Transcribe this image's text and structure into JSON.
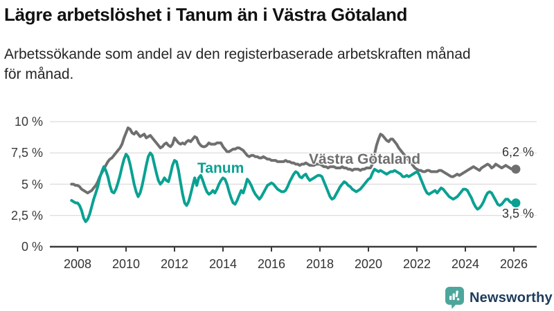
{
  "header": {
    "title": "Lägre arbetslöshet i Tanum än i Västra Götaland",
    "subtitle_line1": "Arbetssökande som andel av den registerbaserade arbetskraften månad",
    "subtitle_line2": "för månad."
  },
  "chart_data": {
    "type": "line",
    "title": "Lägre arbetslöshet i Tanum än i Västra Götaland",
    "xlabel": "",
    "ylabel": "",
    "frequency": "monthly",
    "x_start": "2007-10",
    "x_end": "2026-02",
    "xlim": [
      2007.7,
      2026.95
    ],
    "ylim": [
      0,
      10
    ],
    "grid": "horizontal",
    "legend_position": "inline-labels",
    "y_ticks": {
      "values": [
        0,
        2.5,
        5,
        7.5,
        10
      ],
      "labels": [
        "0 %",
        "2,5 %",
        "5 %",
        "7,5 %",
        "10 %"
      ]
    },
    "x_ticks": {
      "values": [
        2008,
        2010,
        2012,
        2014,
        2016,
        2018,
        2020,
        2022,
        2024,
        2026
      ],
      "labels": [
        "2008",
        "2010",
        "2012",
        "2014",
        "2016",
        "2018",
        "2020",
        "2022",
        "2024",
        "2026"
      ]
    },
    "series": [
      {
        "name": "Västra Götaland",
        "color": "#6f6f6f",
        "end_label": "6,2 %",
        "end_value": 6.2,
        "values": [
          5.0,
          5.0,
          4.9,
          4.9,
          4.8,
          4.6,
          4.5,
          4.4,
          4.3,
          4.4,
          4.5,
          4.7,
          4.9,
          5.2,
          5.6,
          5.9,
          6.2,
          6.5,
          6.8,
          7.0,
          7.1,
          7.3,
          7.5,
          7.7,
          7.9,
          8.2,
          8.7,
          9.1,
          9.5,
          9.4,
          9.1,
          9.0,
          9.2,
          9.0,
          8.8,
          8.9,
          9.0,
          8.7,
          8.8,
          8.9,
          8.7,
          8.5,
          8.3,
          8.1,
          7.9,
          8.0,
          8.2,
          8.3,
          8.1,
          8.0,
          8.2,
          8.7,
          8.5,
          8.3,
          8.2,
          8.3,
          8.2,
          8.4,
          8.5,
          8.4,
          8.6,
          8.8,
          8.7,
          8.3,
          8.1,
          8.0,
          8.0,
          8.1,
          8.3,
          8.2,
          8.2,
          8.2,
          8.3,
          8.3,
          8.3,
          8.0,
          7.8,
          7.6,
          7.6,
          7.7,
          7.8,
          7.8,
          7.9,
          7.9,
          7.8,
          7.7,
          7.5,
          7.3,
          7.2,
          7.3,
          7.3,
          7.2,
          7.2,
          7.1,
          7.1,
          7.2,
          7.1,
          7.0,
          7.0,
          6.9,
          6.9,
          6.9,
          6.8,
          6.8,
          6.8,
          6.8,
          6.9,
          6.8,
          6.8,
          6.7,
          6.7,
          6.6,
          6.6,
          6.5,
          6.6,
          6.6,
          6.7,
          6.6,
          6.5,
          6.5,
          6.5,
          6.6,
          6.6,
          6.6,
          6.5,
          6.4,
          6.4,
          6.3,
          6.4,
          6.4,
          6.4,
          6.3,
          6.3,
          6.3,
          6.4,
          6.3,
          6.3,
          6.2,
          6.2,
          6.1,
          6.2,
          6.2,
          6.2,
          6.1,
          6.2,
          6.2,
          6.3,
          6.3,
          6.3,
          6.6,
          7.4,
          8.1,
          8.6,
          9.0,
          8.9,
          8.7,
          8.5,
          8.4,
          8.6,
          8.6,
          8.4,
          8.2,
          7.9,
          7.7,
          7.5,
          7.3,
          7.1,
          6.9,
          6.7,
          6.5,
          6.3,
          6.2,
          6.1,
          6.1,
          6.0,
          6.0,
          6.1,
          6.1,
          6.0,
          6.0,
          6.0,
          6.0,
          6.1,
          6.1,
          6.0,
          5.9,
          5.8,
          5.7,
          5.6,
          5.6,
          5.7,
          5.8,
          5.7,
          5.8,
          5.9,
          6.0,
          6.1,
          6.2,
          6.3,
          6.4,
          6.3,
          6.2,
          6.1,
          6.3,
          6.4,
          6.5,
          6.6,
          6.5,
          6.3,
          6.4,
          6.6,
          6.5,
          6.4,
          6.3,
          6.4,
          6.5,
          6.4,
          6.3,
          6.2,
          6.2,
          6.2
        ]
      },
      {
        "name": "Tanum",
        "color": "#0aa192",
        "end_label": "3,5 %",
        "end_value": 3.5,
        "values": [
          3.7,
          3.6,
          3.5,
          3.5,
          3.3,
          2.9,
          2.3,
          2.0,
          2.2,
          2.6,
          3.2,
          3.8,
          4.3,
          4.8,
          5.5,
          6.0,
          6.4,
          6.1,
          5.6,
          4.9,
          4.4,
          4.3,
          4.6,
          5.1,
          5.7,
          6.4,
          7.0,
          7.4,
          7.2,
          6.6,
          5.8,
          5.0,
          4.4,
          4.0,
          4.3,
          4.9,
          5.7,
          6.5,
          7.2,
          7.5,
          7.3,
          6.6,
          5.9,
          5.3,
          5.0,
          5.2,
          5.5,
          5.3,
          5.2,
          5.8,
          6.5,
          6.9,
          6.8,
          6.1,
          5.1,
          4.2,
          3.5,
          3.3,
          3.6,
          4.2,
          4.9,
          5.5,
          4.9,
          5.5,
          5.7,
          5.3,
          4.8,
          4.4,
          4.2,
          4.3,
          4.5,
          4.3,
          4.6,
          5.0,
          5.3,
          5.5,
          5.4,
          5.0,
          4.4,
          3.9,
          3.5,
          3.4,
          3.7,
          4.1,
          4.5,
          4.3,
          4.8,
          5.4,
          5.2,
          4.9,
          4.5,
          4.2,
          4.0,
          3.8,
          4.0,
          4.3,
          4.6,
          4.9,
          5.0,
          5.1,
          5.0,
          4.8,
          4.6,
          4.5,
          4.4,
          4.4,
          4.5,
          4.8,
          5.2,
          5.5,
          5.8,
          6.0,
          5.9,
          5.6,
          5.5,
          5.7,
          5.8,
          5.5,
          5.3,
          5.4,
          5.5,
          5.6,
          5.7,
          5.7,
          5.6,
          5.2,
          4.8,
          4.4,
          4.0,
          3.8,
          3.9,
          4.2,
          4.5,
          4.8,
          5.0,
          5.2,
          5.1,
          4.9,
          4.8,
          4.6,
          4.5,
          4.4,
          4.5,
          4.6,
          4.8,
          5.0,
          5.2,
          5.4,
          5.5,
          5.9,
          6.2,
          6.1,
          6.0,
          6.1,
          6.0,
          5.9,
          5.8,
          5.9,
          6.0,
          6.0,
          6.1,
          6.0,
          5.9,
          5.8,
          5.6,
          5.6,
          5.7,
          5.6,
          5.7,
          5.8,
          5.9,
          6.0,
          5.8,
          5.4,
          5.0,
          4.6,
          4.3,
          4.2,
          4.3,
          4.4,
          4.5,
          4.3,
          4.5,
          4.7,
          4.6,
          4.4,
          4.2,
          4.0,
          3.9,
          3.8,
          3.9,
          4.0,
          4.2,
          4.4,
          4.6,
          4.6,
          4.5,
          4.2,
          3.9,
          3.5,
          3.2,
          3.0,
          3.1,
          3.3,
          3.6,
          4.0,
          4.3,
          4.4,
          4.3,
          4.0,
          3.7,
          3.4,
          3.3,
          3.4,
          3.6,
          3.8,
          3.8,
          3.6,
          3.5,
          3.5,
          3.5
        ]
      }
    ]
  },
  "style": {
    "axis_color": "#3a3a3a",
    "grid_color": "#dcdcdc",
    "accent_teal": "#0aa192",
    "accent_gray": "#6f6f6f"
  },
  "footer": {
    "brand": "Newsworthy",
    "brand_text_color": "#1d3b5c",
    "brand_icon_color": "#4da69b"
  }
}
